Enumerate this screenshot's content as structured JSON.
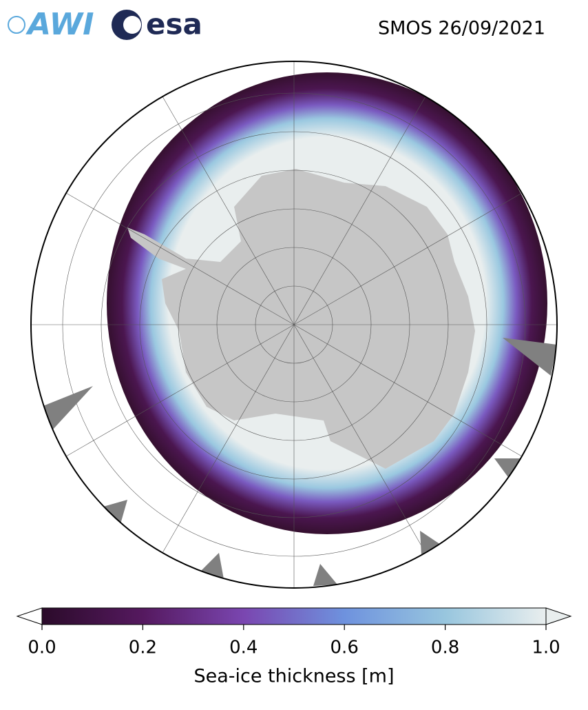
{
  "header": {
    "logos": [
      "AWI",
      "esa"
    ],
    "title": "SMOS 26/09/2021"
  },
  "colorbar": {
    "label": "Sea-ice thickness [m]",
    "lim": [
      0,
      1
    ],
    "ticks": [
      {
        "value": 0,
        "label": "0.0"
      },
      0.2,
      0.4,
      0.6,
      0.8,
      {
        "value": 1,
        "label": "1.0"
      }
    ],
    "colors": [
      "#2b0b2a",
      "#55195f",
      "#7a46b0",
      "#6e92de",
      "#98c6de",
      "#e9eeee"
    ]
  }
}
